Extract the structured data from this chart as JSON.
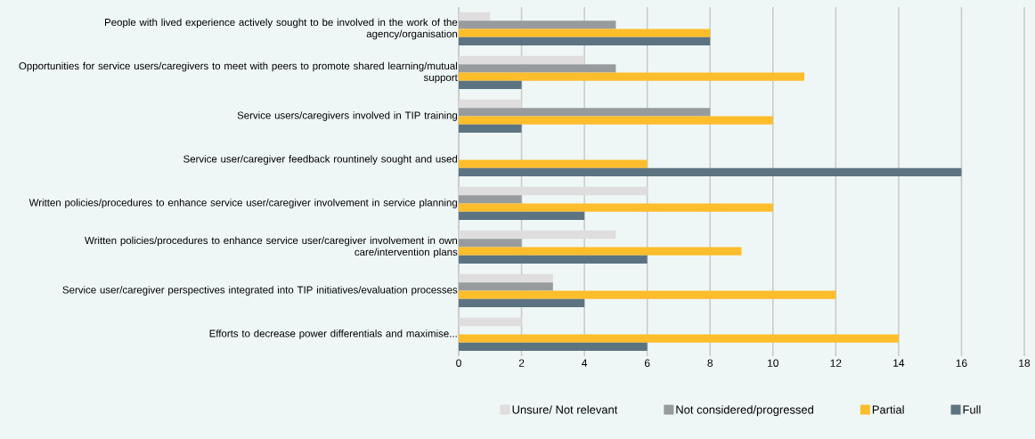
{
  "chart_data": {
    "type": "bar",
    "orientation": "horizontal",
    "categories": [
      "People with lived experience actively sought to be involved in the work of the agency/organisation",
      "Opportunities for service users/caregivers to meet with peers to promote shared learning/mutual support",
      "Service users/caregivers involved in TIP training",
      "Service user/caregiver feedback rountinely sought and used",
      "Written policies/procedures to enhance service user/caregiver involvement in service planning",
      "Written policies/procedures to enhance service user/caregiver involvement in own care/intervention plans",
      "Service user/caregiver perspectives integrated into TIP initiatives/evaluation processes",
      "Efforts to decrease power differentials and maximise..."
    ],
    "series": [
      {
        "name": "Unsure/ Not relevant",
        "color": "#dfdddd",
        "values": [
          1,
          4,
          2,
          null,
          6,
          5,
          3,
          2
        ]
      },
      {
        "name": "Not considered/progressed",
        "color": "#979b9d",
        "values": [
          5,
          5,
          8,
          null,
          2,
          2,
          3,
          null
        ]
      },
      {
        "name": "Partial",
        "color": "#febd2a",
        "values": [
          8,
          11,
          10,
          6,
          10,
          9,
          12,
          14
        ]
      },
      {
        "name": "Full",
        "color": "#5c7482",
        "values": [
          8,
          2,
          2,
          16,
          4,
          6,
          4,
          6
        ]
      }
    ],
    "xlim": [
      0,
      18
    ],
    "xticks": [
      0,
      2,
      4,
      6,
      8,
      10,
      12,
      14,
      16,
      18
    ],
    "grid": "x",
    "legend": "bottom"
  }
}
